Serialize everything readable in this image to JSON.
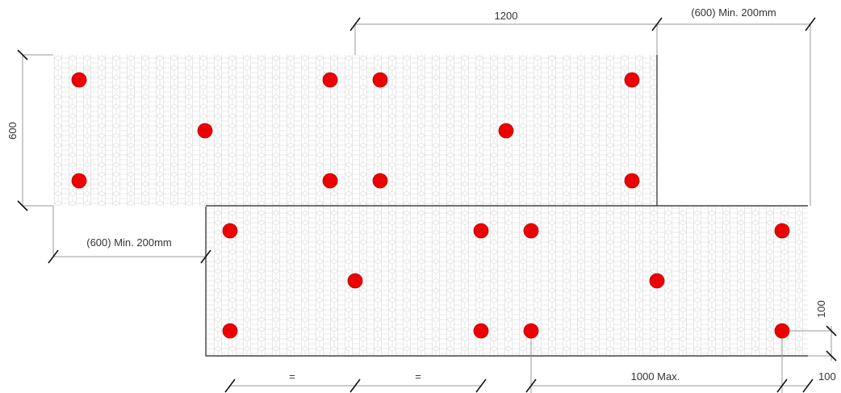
{
  "labels": {
    "top_width": "1200",
    "top_right_gap": "(600) Min. 200mm",
    "left_height": "600",
    "left_offset": "(600) Min. 200mm",
    "equal_1": "=",
    "equal_2": "=",
    "max_spacing": "1000 Max.",
    "edge_right": "100",
    "edge_bottom": "100"
  },
  "colors": {
    "fastener": "#ee0000",
    "fastener_edge": "#b00000",
    "board_pattern": "#e2e2e2"
  }
}
